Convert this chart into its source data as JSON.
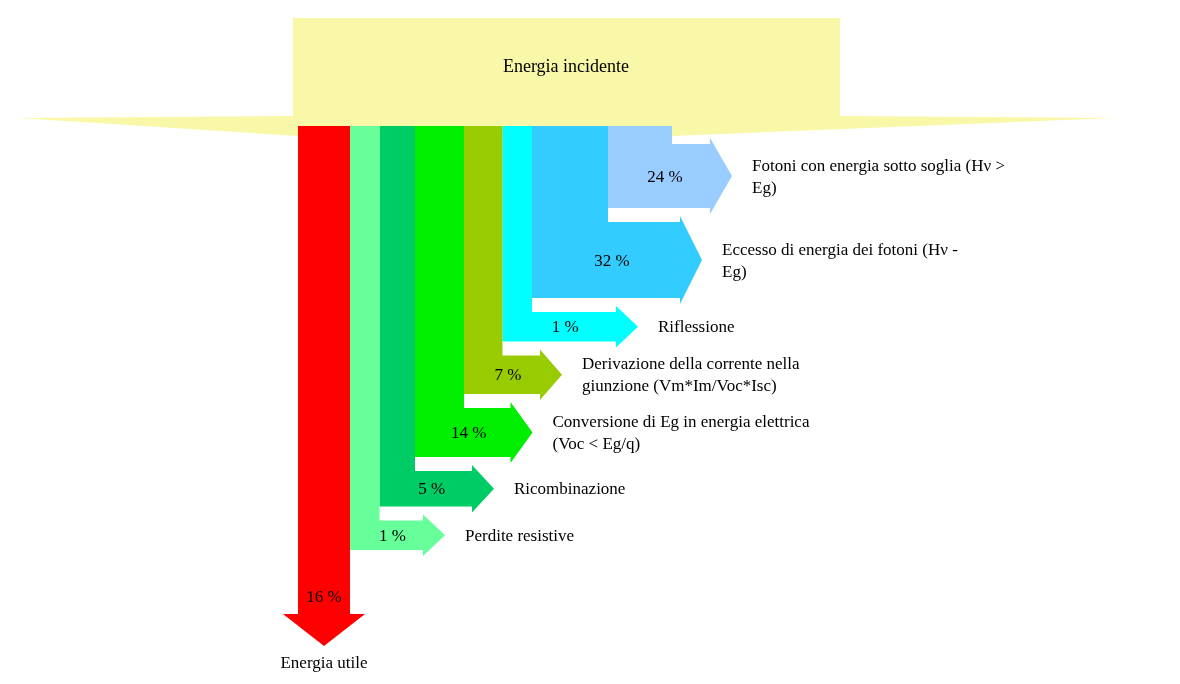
{
  "chart_data": {
    "type": "other",
    "title": "Energia incidente",
    "categories": [
      "Energia utile",
      "Perdite resistive",
      "Ricombinazione",
      "Conversione di Eg in energia elettrica (Voc < Eg/q)",
      "Derivazione della corrente nella giunzione (Vm*Im/Voc*Isc)",
      "Riflessione",
      "Eccesso di energia dei fotoni (Hν - Eg)",
      "Fotoni con energia sotto soglia (Hν > Eg)"
    ],
    "values": [
      16,
      1,
      5,
      14,
      7,
      1,
      32,
      24
    ],
    "value_labels": [
      "16 %",
      "1 %",
      "5 %",
      "14 %",
      "7 %",
      "1 %",
      "32 %",
      "24 %"
    ],
    "colors": [
      "#ff0000",
      "#66ff99",
      "#00cc66",
      "#00ee00",
      "#99cc00",
      "#00ffff",
      "#33ccff",
      "#99ccff"
    ]
  }
}
